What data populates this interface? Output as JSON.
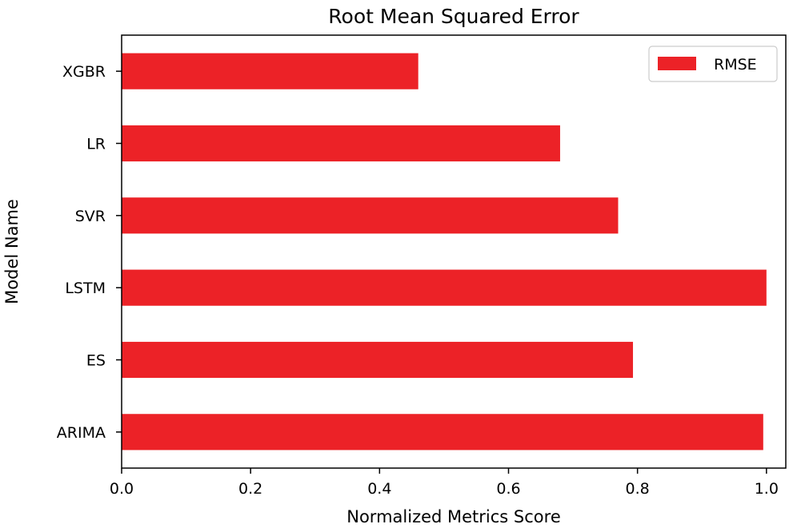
{
  "chart_data": {
    "type": "bar",
    "orientation": "horizontal",
    "title": "Root Mean Squared Error",
    "xlabel": "Normalized Metrics Score",
    "ylabel": "Model Name",
    "categories": [
      "ARIMA",
      "ES",
      "LSTM",
      "SVR",
      "LR",
      "XGBR"
    ],
    "series": [
      {
        "name": "RMSE",
        "color": "#ec2227",
        "values": [
          0.995,
          0.793,
          1.0,
          0.77,
          0.68,
          0.46
        ]
      }
    ],
    "xlim": [
      0.0,
      1.03
    ],
    "xticks": [
      0.0,
      0.2,
      0.4,
      0.6,
      0.8,
      1.0
    ],
    "xtick_labels": [
      "0.0",
      "0.2",
      "0.4",
      "0.6",
      "0.8",
      "1.0"
    ],
    "grid": false,
    "legend": {
      "position": "top-right",
      "entries": [
        "RMSE"
      ]
    }
  }
}
